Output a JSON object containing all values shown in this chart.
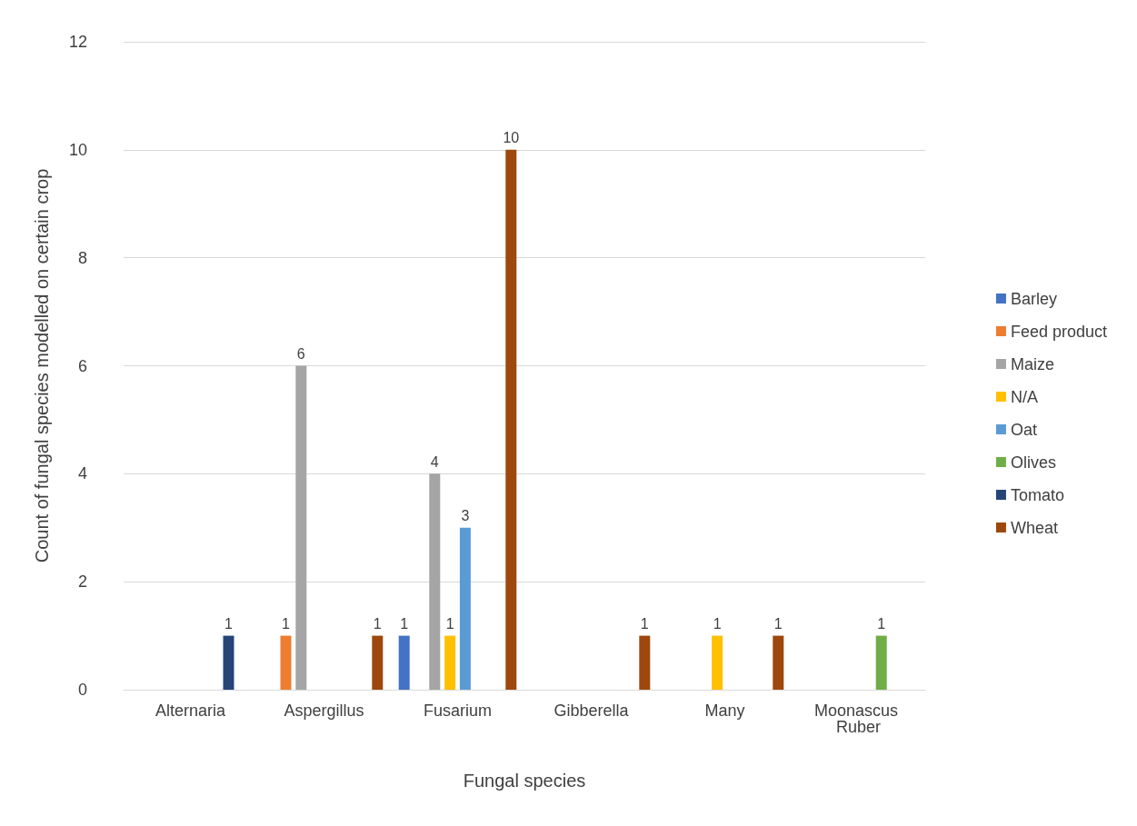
{
  "chart_data": {
    "type": "bar",
    "xlabel": "Fungal species",
    "ylabel": "Count of fungal species modelled on certain crop",
    "categories": [
      "Alternaria",
      "Aspergillus",
      "Fusarium",
      "Gibberella",
      "Many",
      "Moonascus Ruber"
    ],
    "series": [
      {
        "name": "Barley",
        "color": "#4472c4",
        "values": [
          null,
          null,
          1,
          null,
          null,
          null
        ]
      },
      {
        "name": "Feed product",
        "color": "#ed7d31",
        "values": [
          null,
          1,
          null,
          null,
          null,
          null
        ]
      },
      {
        "name": "Maize",
        "color": "#a5a5a5",
        "values": [
          null,
          6,
          4,
          null,
          null,
          null
        ]
      },
      {
        "name": "N/A",
        "color": "#ffc000",
        "values": [
          null,
          null,
          1,
          null,
          1,
          null
        ]
      },
      {
        "name": "Oat",
        "color": "#5b9bd5",
        "values": [
          null,
          null,
          3,
          null,
          null,
          null
        ]
      },
      {
        "name": "Olives",
        "color": "#70ad47",
        "values": [
          null,
          null,
          null,
          null,
          null,
          1
        ]
      },
      {
        "name": "Tomato",
        "color": "#264478",
        "values": [
          1,
          null,
          null,
          null,
          null,
          null
        ]
      },
      {
        "name": "Wheat",
        "color": "#9e480e",
        "values": [
          null,
          1,
          10,
          1,
          1,
          null
        ]
      }
    ],
    "ylim": [
      0,
      12
    ],
    "yticks": [
      0,
      2,
      4,
      6,
      8,
      10,
      12
    ],
    "grid": "y",
    "legend": "right",
    "data_labels": true
  }
}
